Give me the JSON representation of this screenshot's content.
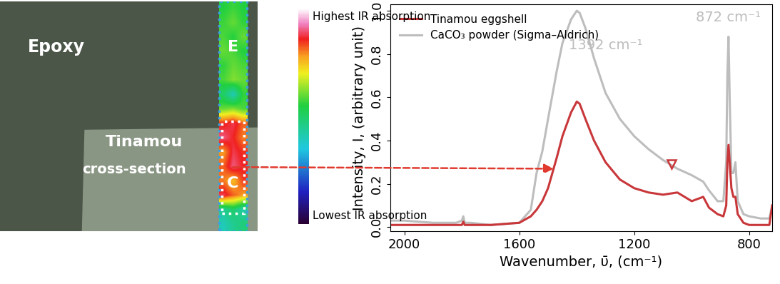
{
  "chart_data": [
    {
      "type": "heatmap",
      "texts": [
        "Epoxy",
        "E",
        "Tinamou",
        "cross-section",
        "C"
      ],
      "colorbar_labels": {
        "high": "Highest IR absorption",
        "low": "Lowest IR absorption"
      },
      "colorbar_range": [
        0,
        1
      ],
      "cells": [
        [
          0.55,
          0.57,
          0.55
        ],
        [
          0.57,
          0.6,
          0.56
        ],
        [
          0.58,
          0.55,
          0.6
        ],
        [
          0.6,
          0.58,
          0.55
        ],
        [
          0.56,
          0.6,
          0.58
        ],
        [
          0.58,
          0.62,
          0.6
        ],
        [
          0.5,
          0.4,
          0.56
        ],
        [
          0.6,
          0.62,
          0.58
        ],
        [
          0.85,
          0.88,
          0.82
        ],
        [
          0.9,
          0.86,
          0.8
        ],
        [
          0.78,
          0.88,
          0.85
        ],
        [
          0.82,
          0.9,
          0.86
        ],
        [
          0.8,
          0.75,
          0.84
        ],
        [
          0.88,
          0.82,
          0.78
        ],
        [
          0.45,
          0.5,
          0.42
        ],
        [
          0.4,
          0.45,
          0.48
        ]
      ]
    },
    {
      "type": "line",
      "x_label": "Wavenumber, ῡ, (cm⁻¹)",
      "y_label": "Intensity, I, (arbitrary unit)",
      "x": [
        2050,
        2000,
        1900,
        1820,
        1800,
        1795,
        1790,
        1770,
        1700,
        1600,
        1560,
        1540,
        1520,
        1500,
        1470,
        1450,
        1420,
        1400,
        1390,
        1370,
        1340,
        1300,
        1250,
        1200,
        1150,
        1100,
        1050,
        1000,
        960,
        940,
        910,
        890,
        880,
        876,
        872,
        868,
        862,
        855,
        848,
        840,
        820,
        800,
        760,
        730,
        720
      ],
      "series": [
        {
          "name": "Tinamou eggshell",
          "color": "#c8373a",
          "values": [
            0.01,
            0.01,
            0.01,
            0.01,
            0.01,
            0.025,
            0.01,
            0.01,
            0.01,
            0.02,
            0.05,
            0.08,
            0.12,
            0.18,
            0.32,
            0.42,
            0.53,
            0.58,
            0.57,
            0.5,
            0.4,
            0.3,
            0.22,
            0.18,
            0.16,
            0.15,
            0.16,
            0.12,
            0.14,
            0.09,
            0.06,
            0.05,
            0.1,
            0.3,
            0.38,
            0.3,
            0.18,
            0.14,
            0.14,
            0.06,
            0.02,
            0.01,
            0.01,
            0.01,
            0.1
          ]
        },
        {
          "name": "CaCO₃ powder (Sigma–Aldrich)",
          "color": "#bdbdbd",
          "values": [
            0.03,
            0.03,
            0.02,
            0.02,
            0.03,
            0.05,
            0.02,
            0.02,
            0.01,
            0.02,
            0.08,
            0.25,
            0.35,
            0.5,
            0.72,
            0.85,
            0.96,
            1.0,
            0.99,
            0.92,
            0.78,
            0.62,
            0.5,
            0.42,
            0.36,
            0.31,
            0.27,
            0.24,
            0.21,
            0.17,
            0.12,
            0.12,
            0.3,
            0.7,
            0.88,
            0.6,
            0.25,
            0.25,
            0.3,
            0.12,
            0.06,
            0.05,
            0.04,
            0.04,
            0.1
          ]
        }
      ],
      "xlim": [
        2050,
        720
      ],
      "ylim": [
        -0.02,
        1.03
      ],
      "xticks": [
        2000,
        1600,
        1200,
        800
      ],
      "yticks": [
        {
          "value": 0,
          "label": "0.0"
        },
        {
          "value": 0.2,
          "label": "0.2"
        },
        {
          "value": 0.4,
          "label": "0.4"
        },
        {
          "value": 0.6,
          "label": "0.6"
        },
        {
          "value": 0.8,
          "label": "0.8"
        },
        {
          "value": 1.0,
          "label": "1.0"
        }
      ],
      "legend": "upper left",
      "annotations": [
        {
          "text": "1392 cm⁻¹",
          "x": 1300,
          "y": 0.84,
          "color": "#bdbdbd"
        },
        {
          "text": "872 cm⁻¹",
          "x": 872,
          "y": 0.97,
          "color": "#bdbdbd"
        }
      ],
      "points": [
        {
          "x": 1070,
          "y": 0.29,
          "marker": "triangle_down_open",
          "color": "#c8373a"
        }
      ],
      "arrow_target": {
        "x": 1480,
        "y": 0.27,
        "color": "#e03a2e"
      }
    }
  ]
}
